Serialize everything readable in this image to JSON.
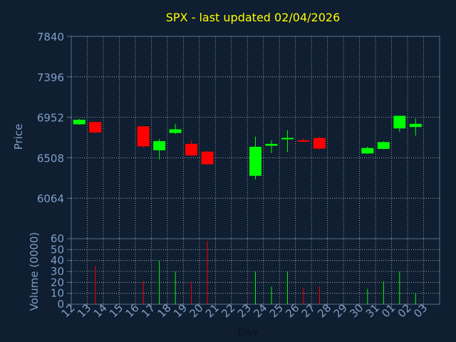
{
  "chart_data": {
    "type": "candlestick",
    "title": "SPX - last updated 02/04/2026",
    "xlabel": "Day",
    "price_panel": {
      "ylabel": "Price",
      "ylim": [
        5620,
        7840
      ],
      "yticks": [
        "7840",
        "7396",
        "6952",
        "6508",
        "6064"
      ],
      "ytick_values": [
        7840,
        7396,
        6952,
        6508,
        6064
      ]
    },
    "volume_panel": {
      "ylabel": "Volume (0000)",
      "ylim": [
        0,
        60
      ],
      "yticks": [
        "60",
        "50",
        "40",
        "30",
        "20",
        "10",
        "0"
      ],
      "ytick_values": [
        60,
        50,
        40,
        30,
        20,
        10,
        0
      ]
    },
    "x_tick_labels": [
      "12",
      "13",
      "14",
      "15",
      "16",
      "17",
      "18",
      "19",
      "20",
      "21",
      "22",
      "23",
      "24",
      "25",
      "26",
      "27",
      "28",
      "29",
      "30",
      "31",
      "01",
      "02",
      "03"
    ],
    "candles": [
      {
        "day": "12",
        "open": 6875,
        "close": 6925,
        "high": 6935,
        "low": 6870,
        "volume": 0
      },
      {
        "day": "13",
        "open": 6900,
        "close": 6785,
        "high": 6905,
        "low": 6780,
        "volume": 35
      },
      {
        "day": "16",
        "open": 6853,
        "close": 6633,
        "high": 6855,
        "low": 6620,
        "volume": 21
      },
      {
        "day": "17",
        "open": 6590,
        "close": 6690,
        "high": 6715,
        "low": 6490,
        "volume": 40
      },
      {
        "day": "18",
        "open": 6780,
        "close": 6820,
        "high": 6880,
        "low": 6770,
        "volume": 30
      },
      {
        "day": "19",
        "open": 6660,
        "close": 6532,
        "high": 6700,
        "low": 6530,
        "volume": 21
      },
      {
        "day": "20",
        "open": 6575,
        "close": 6436,
        "high": 6580,
        "low": 6430,
        "volume": 58
      },
      {
        "day": "23",
        "open": 6310,
        "close": 6628,
        "high": 6740,
        "low": 6270,
        "volume": 30
      },
      {
        "day": "24",
        "open": 6640,
        "close": 6660,
        "high": 6700,
        "low": 6560,
        "volume": 16
      },
      {
        "day": "25",
        "open": 6720,
        "close": 6726,
        "high": 6810,
        "low": 6572,
        "volume": 30
      },
      {
        "day": "26",
        "open": 6700,
        "close": 6695,
        "high": 6720,
        "low": 6680,
        "volume": 15
      },
      {
        "day": "27",
        "open": 6725,
        "close": 6608,
        "high": 6740,
        "low": 6600,
        "volume": 16
      },
      {
        "day": "30",
        "open": 6555,
        "close": 6615,
        "high": 6630,
        "low": 6550,
        "volume": 14
      },
      {
        "day": "31",
        "open": 6605,
        "close": 6680,
        "high": 6690,
        "low": 6600,
        "volume": 21
      },
      {
        "day": "01",
        "open": 6830,
        "close": 6968,
        "high": 6970,
        "low": 6790,
        "volume": 30
      },
      {
        "day": "02",
        "open": 6845,
        "close": 6880,
        "high": 6940,
        "low": 6750,
        "volume": 10
      }
    ],
    "colors": {
      "up": "#00ff00",
      "down": "#ff0000",
      "title": "#ffff00",
      "label": "#7f9fc8",
      "grid": "#ffffff",
      "axis": "#5a7090",
      "background": "#0f1e30"
    },
    "grid": true
  }
}
